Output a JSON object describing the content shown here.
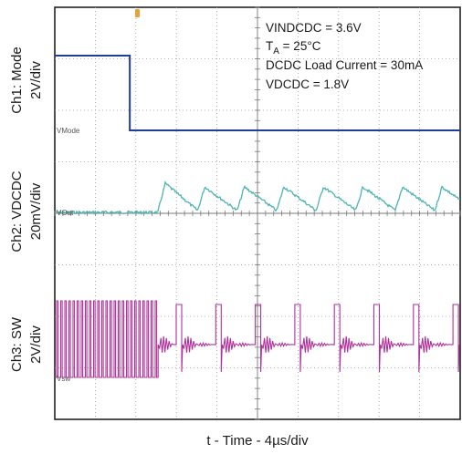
{
  "chart_data": {
    "type": "line",
    "title": "",
    "xlabel": "t - Time - 4µs/div",
    "grid": true,
    "x_divisions": 10,
    "y_divisions": 8,
    "annotations": [
      {
        "text": "VINDCDC = 3.6V"
      },
      {
        "prefix": "T",
        "sub": "A",
        "suffix": " = 25°C"
      },
      {
        "text": "DCDC Load Current = 30mA"
      },
      {
        "text": "VDCDC = 1.8V"
      }
    ],
    "series": [
      {
        "name": "VMode",
        "ylabel_line1": "Ch1: Mode",
        "ylabel_line2": "2V/div",
        "color": "#1f3d99",
        "high_until_us": 7.4
      },
      {
        "name": "VOut",
        "ylabel_line1": "Ch2: VDCDC",
        "ylabel_line2": "20mV/div",
        "color": "#4db3b3",
        "ripple_start_us": 10.2,
        "ripple_period_us": 3.9
      },
      {
        "name": "Vsw",
        "ylabel_line1": "Ch3: SW",
        "ylabel_line2": "2V/div",
        "color": "#b0309a",
        "fast_switching_until_us": 10.2,
        "burst_period_us": 3.9
      }
    ]
  }
}
